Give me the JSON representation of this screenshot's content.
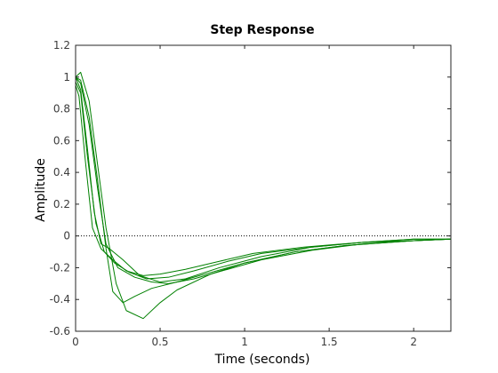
{
  "chart_data": {
    "type": "line",
    "title": "Step Response",
    "xlabel": "Time (seconds)",
    "ylabel": "Amplitude",
    "xlim": [
      0,
      2.22
    ],
    "ylim": [
      -0.6,
      1.2
    ],
    "xticks": [
      0,
      0.5,
      1,
      1.5,
      2
    ],
    "xtick_labels": [
      "0",
      "0.5",
      "1",
      "1.5",
      "2"
    ],
    "yticks": [
      -0.6,
      -0.4,
      -0.2,
      0,
      0.2,
      0.4,
      0.6,
      0.8,
      1,
      1.2
    ],
    "ytick_labels": [
      "-0.6",
      "-0.4",
      "-0.2",
      "0",
      "0.2",
      "0.4",
      "0.6",
      "0.8",
      "1",
      "1.2"
    ],
    "grid": false,
    "zero_reference_line": true,
    "line_color": "#008000",
    "series": [
      {
        "x": [
          0,
          0.03,
          0.08,
          0.13,
          0.18,
          0.24,
          0.3,
          0.4,
          0.5,
          0.6,
          0.8,
          1.0,
          1.3,
          1.6,
          2.0,
          2.22
        ],
        "values": [
          1.0,
          1.03,
          0.85,
          0.45,
          0.05,
          -0.3,
          -0.47,
          -0.52,
          -0.42,
          -0.34,
          -0.24,
          -0.17,
          -0.1,
          -0.06,
          -0.03,
          -0.02
        ]
      },
      {
        "x": [
          0,
          0.03,
          0.08,
          0.13,
          0.18,
          0.22,
          0.28,
          0.35,
          0.45,
          0.6,
          0.8,
          1.0,
          1.3,
          1.6,
          2.0,
          2.22
        ],
        "values": [
          1.0,
          0.98,
          0.75,
          0.35,
          -0.08,
          -0.35,
          -0.42,
          -0.38,
          -0.33,
          -0.29,
          -0.23,
          -0.17,
          -0.1,
          -0.06,
          -0.03,
          -0.02
        ]
      },
      {
        "x": [
          0,
          0.03,
          0.08,
          0.13,
          0.18,
          0.25,
          0.35,
          0.45,
          0.55,
          0.7,
          0.9,
          1.1,
          1.4,
          1.7,
          2.0,
          2.22
        ],
        "values": [
          1.0,
          0.96,
          0.7,
          0.3,
          -0.05,
          -0.2,
          -0.26,
          -0.29,
          -0.3,
          -0.27,
          -0.21,
          -0.15,
          -0.09,
          -0.05,
          -0.03,
          -0.02
        ]
      },
      {
        "x": [
          0,
          0.03,
          0.07,
          0.11,
          0.15,
          0.2,
          0.28,
          0.38,
          0.5,
          0.65,
          0.85,
          1.1,
          1.4,
          1.7,
          2.0,
          2.22
        ],
        "values": [
          1.0,
          0.92,
          0.55,
          0.15,
          -0.05,
          -0.08,
          -0.15,
          -0.25,
          -0.29,
          -0.27,
          -0.2,
          -0.13,
          -0.07,
          -0.04,
          -0.03,
          -0.02
        ]
      },
      {
        "x": [
          0,
          0.03,
          0.07,
          0.12,
          0.17,
          0.23,
          0.32,
          0.42,
          0.55,
          0.7,
          0.9,
          1.1,
          1.4,
          1.7,
          2.0,
          2.22
        ],
        "values": [
          0.97,
          0.9,
          0.5,
          0.08,
          -0.1,
          -0.17,
          -0.23,
          -0.27,
          -0.26,
          -0.22,
          -0.16,
          -0.11,
          -0.07,
          -0.04,
          -0.02,
          -0.02
        ]
      },
      {
        "x": [
          0,
          0.02,
          0.06,
          0.1,
          0.15,
          0.22,
          0.3,
          0.4,
          0.5,
          0.65,
          0.85,
          1.05,
          1.35,
          1.7,
          2.0,
          2.22
        ],
        "values": [
          0.95,
          0.88,
          0.45,
          0.05,
          -0.08,
          -0.15,
          -0.22,
          -0.25,
          -0.24,
          -0.21,
          -0.16,
          -0.11,
          -0.07,
          -0.04,
          -0.02,
          -0.02
        ]
      }
    ]
  }
}
